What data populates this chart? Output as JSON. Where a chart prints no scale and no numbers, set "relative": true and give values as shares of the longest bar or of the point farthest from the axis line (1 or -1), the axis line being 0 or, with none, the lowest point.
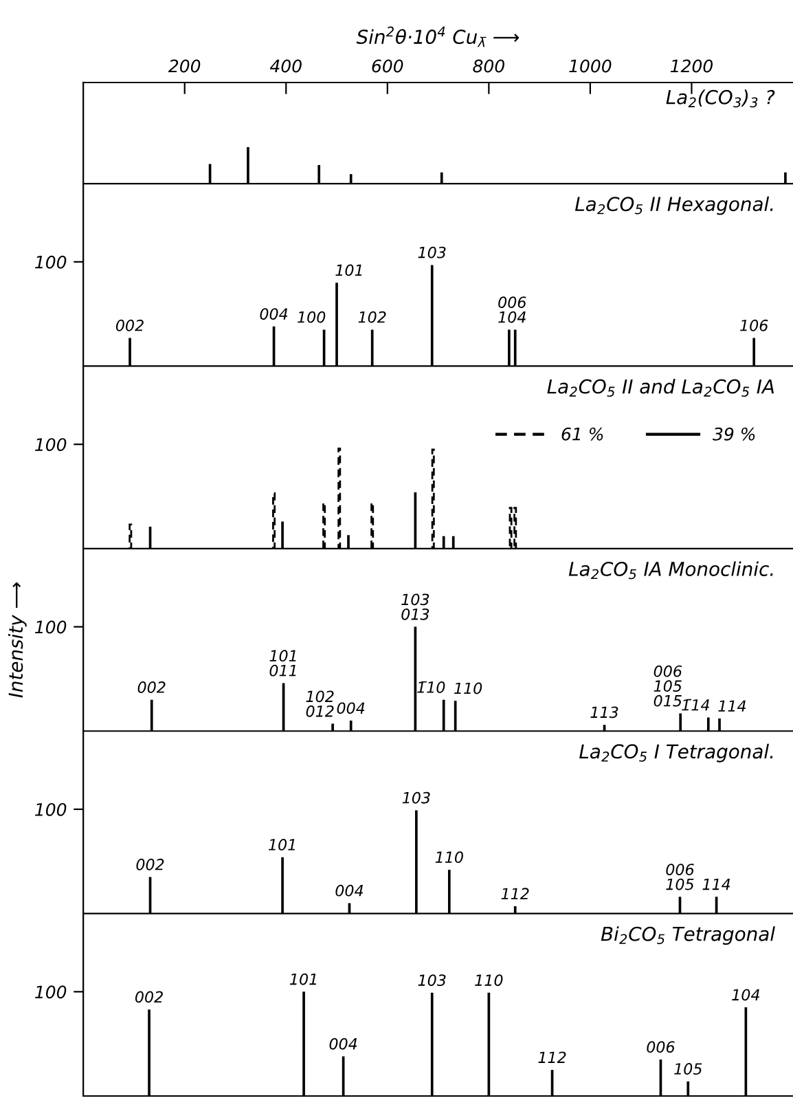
{
  "chart_data": [
    {
      "type": "bar",
      "title": "La$_{2}$(CO$_{3}$)$_{3}$ ?",
      "xlabel": "Sin$^{2}$θ·10$^{4}$ Cu$_{λ̄}$ ⟶",
      "x": [
        250,
        325,
        465,
        528,
        707,
        1385
      ],
      "values": [
        0.54,
        1,
        0.51,
        0.26,
        0.31,
        0.31
      ],
      "relative": true,
      "color": "#000000",
      "xlim": [
        0,
        1400
      ],
      "xticks": [
        200,
        400,
        600,
        800,
        1000,
        1200
      ],
      "tick_labels": "x"
    },
    {
      "type": "bar",
      "title": "La$_{2}$CO$_{5}$ II Hexagonal.",
      "x": [
        92,
        376,
        475,
        500,
        570,
        688,
        840,
        852,
        1323
      ],
      "values": [
        27,
        38,
        35,
        80,
        35,
        97,
        35,
        35,
        27
      ],
      "color": "#000000",
      "xlim": [
        0,
        1400
      ],
      "ylim": [
        0,
        175
      ],
      "yticks": [
        100
      ],
      "tick_labels": "y",
      "annotations": [
        {
          "text": "002",
          "x": 92,
          "y": 27
        },
        {
          "text": "004",
          "x": 376,
          "y": 38
        },
        {
          "text": "100",
          "x": 475,
          "y": 35
        },
        {
          "text": "101",
          "x": 500,
          "y": 80
        },
        {
          "text": "102",
          "x": 570,
          "y": 35
        },
        {
          "text": "103",
          "x": 688,
          "y": 97
        },
        {
          "text": "006\n104",
          "x": 846,
          "y": 35
        },
        {
          "text": "106",
          "x": 1323,
          "y": 27
        }
      ]
    },
    {
      "type": "bar",
      "title": "La$_{2}$CO$_{5}$ II and La$_{2}$CO$_{5}$ IA",
      "xlim": [
        0,
        1400
      ],
      "ylim": [
        0,
        175
      ],
      "yticks": [
        100
      ],
      "tick_labels": "y",
      "legend": "top right",
      "series": [
        {
          "name": "61 %",
          "color": "#000000",
          "line_style": "dashed",
          "x": [
            93,
            376,
            475,
            505,
            570,
            690,
            843,
            852
          ],
          "values": [
            23,
            53,
            44,
            96,
            44,
            95,
            39,
            39
          ]
        },
        {
          "name": "39 %",
          "color": "#000000",
          "line_style": "solid",
          "x": [
            132,
            393,
            523,
            655,
            711,
            730
          ],
          "values": [
            21,
            26,
            13,
            54,
            12,
            12
          ]
        }
      ]
    },
    {
      "type": "bar",
      "title": "La$_{2}$CO$_{5}$ IA Monoclinic.",
      "ylabel": "Intensity ⟶",
      "x": [
        135,
        395,
        492,
        528,
        655,
        711,
        734,
        1028,
        1178,
        1233,
        1255
      ],
      "values": [
        30,
        46,
        7,
        10,
        100,
        30,
        29,
        6,
        17,
        13,
        12
      ],
      "color": "#000000",
      "xlim": [
        0,
        1400
      ],
      "ylim": [
        0,
        175
      ],
      "yticks": [
        100
      ],
      "tick_labels": "y",
      "annotations": [
        {
          "text": "002",
          "x": 135,
          "y": 30
        },
        {
          "text": "101\n011",
          "x": 395,
          "y": 46
        },
        {
          "text": "102\n012",
          "x": 492,
          "y": 7
        },
        {
          "text": "004",
          "x": 528,
          "y": 10
        },
        {
          "text": "103\n013",
          "x": 655,
          "y": 100
        },
        {
          "text": "1̄10",
          "x": 711,
          "y": 30
        },
        {
          "text": "110",
          "x": 734,
          "y": 29
        },
        {
          "text": "113",
          "x": 1028,
          "y": 6
        },
        {
          "text": "006\n105\n015",
          "x": 1178,
          "y": 17
        },
        {
          "text": "1̄14",
          "x": 1233,
          "y": 13
        },
        {
          "text": "114",
          "x": 1255,
          "y": 12
        }
      ]
    },
    {
      "type": "bar",
      "title": "La$_{2}$CO$_{5}$ I Tetragonal.",
      "x": [
        132,
        393,
        525,
        657,
        722,
        852,
        1177,
        1249
      ],
      "values": [
        35,
        54,
        10,
        99,
        42,
        7,
        16,
        16
      ],
      "color": "#000000",
      "xlim": [
        0,
        1400
      ],
      "ylim": [
        0,
        175
      ],
      "yticks": [
        100
      ],
      "tick_labels": "y",
      "annotations": [
        {
          "text": "002",
          "x": 132,
          "y": 35
        },
        {
          "text": "101",
          "x": 393,
          "y": 54
        },
        {
          "text": "004",
          "x": 525,
          "y": 10
        },
        {
          "text": "103",
          "x": 657,
          "y": 99
        },
        {
          "text": "110",
          "x": 722,
          "y": 42
        },
        {
          "text": "112",
          "x": 852,
          "y": 7
        },
        {
          "text": "006\n105",
          "x": 1177,
          "y": 16
        },
        {
          "text": "114",
          "x": 1249,
          "y": 16
        }
      ]
    },
    {
      "type": "bar",
      "title": "Bi$_{2}$CO$_{5}$ Tetragonal",
      "x": [
        130,
        435,
        513,
        688,
        800,
        925,
        1139,
        1193,
        1307
      ],
      "values": [
        83,
        100,
        38,
        99,
        99,
        25,
        35,
        14,
        85
      ],
      "color": "#000000",
      "xlim": [
        0,
        1400
      ],
      "ylim": [
        0,
        175
      ],
      "yticks": [
        100
      ],
      "tick_labels": "y",
      "annotations": [
        {
          "text": "002",
          "x": 130,
          "y": 83
        },
        {
          "text": "101",
          "x": 435,
          "y": 100
        },
        {
          "text": "004",
          "x": 513,
          "y": 38
        },
        {
          "text": "103",
          "x": 688,
          "y": 99
        },
        {
          "text": "110",
          "x": 800,
          "y": 99
        },
        {
          "text": "112",
          "x": 925,
          "y": 25
        },
        {
          "text": "006",
          "x": 1139,
          "y": 35
        },
        {
          "text": "105",
          "x": 1193,
          "y": 14
        },
        {
          "text": "104",
          "x": 1307,
          "y": 85
        }
      ]
    }
  ]
}
